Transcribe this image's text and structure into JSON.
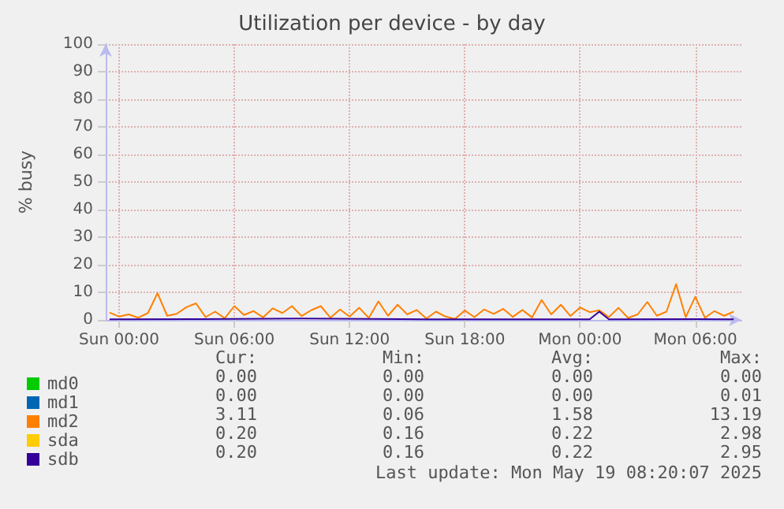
{
  "chart_data": {
    "type": "line",
    "title": "Utilization per device - by day",
    "ylabel": "% busy",
    "xlim": [
      "2025-05-17T23:18",
      "2025-05-19T08:24"
    ],
    "xticks": [
      {
        "value": "2025-05-18T00:00",
        "label": "Sun 00:00"
      },
      {
        "value": "2025-05-18T06:00",
        "label": "Sun 06:00"
      },
      {
        "value": "2025-05-18T12:00",
        "label": "Sun 12:00"
      },
      {
        "value": "2025-05-18T18:00",
        "label": "Sun 18:00"
      },
      {
        "value": "2025-05-19T00:00",
        "label": "Mon 00:00"
      },
      {
        "value": "2025-05-19T06:00",
        "label": "Mon 06:00"
      }
    ],
    "ylim": [
      0,
      100
    ],
    "yticks": [
      0,
      10,
      20,
      30,
      40,
      50,
      60,
      70,
      80,
      90,
      100
    ],
    "grid": true,
    "legend": "bottom left",
    "marker": "none",
    "line_style": "solid",
    "series": [
      {
        "name": "md0",
        "color": "#00cc00"
      },
      {
        "name": "md1",
        "color": "#0066b3"
      },
      {
        "name": "md2",
        "color": "#ff8000",
        "x": [
          "2025-05-17T23:30",
          "2025-05-18T00:00",
          "2025-05-18T00:30",
          "2025-05-18T01:00",
          "2025-05-18T01:30",
          "2025-05-18T02:00",
          "2025-05-18T02:30",
          "2025-05-18T03:00",
          "2025-05-18T03:30",
          "2025-05-18T04:00",
          "2025-05-18T04:30",
          "2025-05-18T05:00",
          "2025-05-18T05:30",
          "2025-05-18T06:00",
          "2025-05-18T06:30",
          "2025-05-18T07:00",
          "2025-05-18T07:30",
          "2025-05-18T08:00",
          "2025-05-18T08:30",
          "2025-05-18T09:00",
          "2025-05-18T09:30",
          "2025-05-18T10:00",
          "2025-05-18T10:30",
          "2025-05-18T11:00",
          "2025-05-18T11:30",
          "2025-05-18T12:00",
          "2025-05-18T12:30",
          "2025-05-18T13:00",
          "2025-05-18T13:30",
          "2025-05-18T14:00",
          "2025-05-18T14:30",
          "2025-05-18T15:00",
          "2025-05-18T15:30",
          "2025-05-18T16:00",
          "2025-05-18T16:30",
          "2025-05-18T17:00",
          "2025-05-18T17:30",
          "2025-05-18T18:00",
          "2025-05-18T18:30",
          "2025-05-18T19:00",
          "2025-05-18T19:30",
          "2025-05-18T20:00",
          "2025-05-18T20:30",
          "2025-05-18T21:00",
          "2025-05-18T21:30",
          "2025-05-18T22:00",
          "2025-05-18T22:30",
          "2025-05-18T23:00",
          "2025-05-18T23:30",
          "2025-05-19T00:00",
          "2025-05-19T00:30",
          "2025-05-19T01:00",
          "2025-05-19T01:30",
          "2025-05-19T02:00",
          "2025-05-19T02:30",
          "2025-05-19T03:00",
          "2025-05-19T03:30",
          "2025-05-19T04:00",
          "2025-05-19T04:30",
          "2025-05-19T05:00",
          "2025-05-19T05:30",
          "2025-05-19T06:00",
          "2025-05-19T06:30",
          "2025-05-19T07:00",
          "2025-05-19T07:30",
          "2025-05-19T08:00"
        ],
        "values": [
          2.7,
          1.2,
          2.0,
          0.8,
          2.5,
          9.7,
          1.5,
          2.2,
          4.6,
          6.0,
          1.0,
          3.0,
          0.6,
          5.0,
          1.8,
          3.2,
          0.9,
          4.2,
          2.5,
          5.0,
          1.4,
          3.5,
          5.0,
          0.8,
          3.8,
          1.2,
          4.4,
          0.7,
          6.7,
          1.5,
          5.5,
          2.0,
          3.6,
          0.5,
          3.0,
          1.2,
          0.4,
          3.4,
          1.0,
          3.8,
          2.2,
          4.0,
          1.1,
          3.6,
          0.9,
          7.2,
          2.0,
          5.5,
          1.4,
          4.5,
          2.8,
          3.5,
          1.0,
          4.4,
          0.7,
          2.0,
          6.5,
          1.5,
          3.0,
          13.0,
          1.0,
          8.4,
          0.8,
          3.2,
          1.5,
          3.0
        ]
      },
      {
        "name": "sda",
        "color": "#ffcc00"
      },
      {
        "name": "sdb",
        "color": "#330099",
        "x": [
          "2025-05-17T23:30",
          "2025-05-18T04:00",
          "2025-05-18T09:30",
          "2025-05-18T16:00",
          "2025-05-19T00:30",
          "2025-05-19T01:00",
          "2025-05-19T01:30",
          "2025-05-19T06:00",
          "2025-05-19T08:00"
        ],
        "values": [
          0.2,
          0.3,
          0.5,
          0.2,
          0.2,
          3.0,
          0.2,
          0.3,
          0.2
        ]
      }
    ],
    "annotations": [
      "Cur:",
      "Min:",
      "Avg:",
      "Max:",
      "0.00",
      "0.00",
      "0.00",
      "0.00",
      "0.00",
      "0.00",
      "0.00",
      "0.01",
      "3.11",
      "0.06",
      "1.58",
      "13.19",
      "0.20",
      "0.16",
      "0.22",
      "2.98",
      "0.20",
      "0.16",
      "0.22",
      "2.95",
      "Last update: Mon May 19 08:20:07 2025"
    ]
  }
}
